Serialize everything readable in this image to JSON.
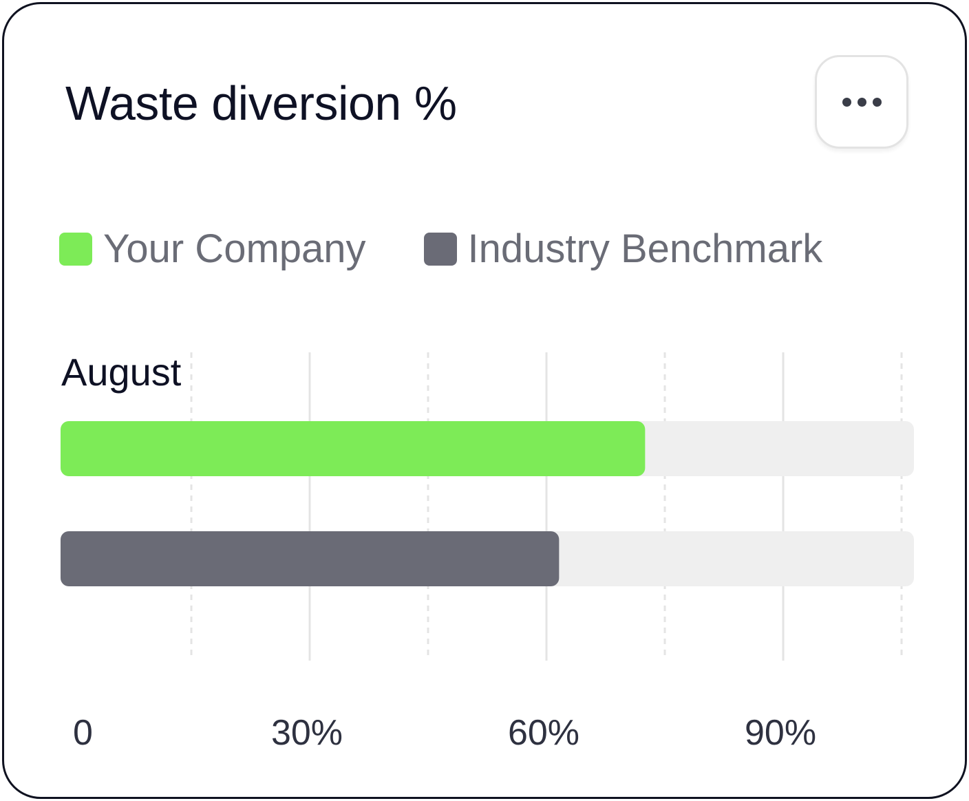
{
  "card": {
    "title": "Waste diversion %",
    "menu_icon": "more-horizontal-icon"
  },
  "legend": [
    {
      "label": "Your Company",
      "color": "#7deb57"
    },
    {
      "label": "Industry Benchmark",
      "color": "#6a6b76"
    }
  ],
  "chart_data": {
    "type": "bar",
    "orientation": "horizontal",
    "categories": [
      "August"
    ],
    "series": [
      {
        "name": "Your Company",
        "values": [
          72.5
        ],
        "color": "#7deb57"
      },
      {
        "name": "Industry Benchmark",
        "values": [
          61.6
        ],
        "color": "#6a6b76"
      }
    ],
    "xlim": [
      0,
      108
    ],
    "xticks": [
      0,
      30,
      60,
      90
    ],
    "xtick_labels": [
      "0",
      "30%",
      "60%",
      "90%"
    ],
    "grid": true,
    "track_color": "#efefef",
    "legend_position": "top"
  }
}
